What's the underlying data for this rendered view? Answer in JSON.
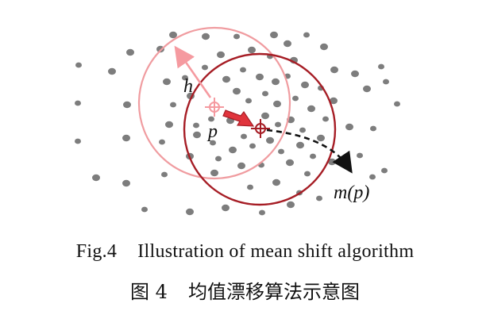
{
  "diagram": {
    "labels": {
      "radius": "h",
      "point": "p",
      "mean": "m(p)"
    },
    "colors": {
      "points": "#7d7d7d",
      "initial_window": "#f09ca0",
      "shifted_window": "#a61d25",
      "initial_center": "#f59aa0",
      "shift_arrow": "#e0343c",
      "trajectory": "#111111"
    }
  },
  "caption": {
    "en_label": "Fig.4",
    "en_text": "Illustration of mean shift algorithm",
    "cn_label": "图 4",
    "cn_text": "均值漂移算法示意图"
  }
}
